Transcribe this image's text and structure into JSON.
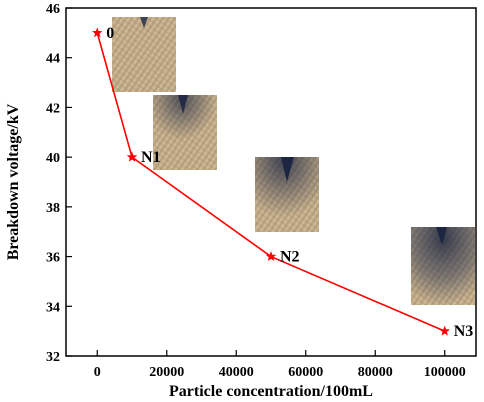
{
  "chart_data": {
    "type": "line",
    "title": "",
    "xlabel": "Particle concentration/100mL",
    "ylabel": "Breakdown voltage/kV",
    "xlim": [
      -9000,
      109000
    ],
    "ylim": [
      32,
      46
    ],
    "xticks": [
      0,
      20000,
      40000,
      60000,
      80000,
      100000
    ],
    "yticks": [
      32,
      34,
      36,
      38,
      40,
      42,
      44,
      46
    ],
    "grid": false,
    "legend": "none",
    "series": [
      {
        "color": "#ff0000",
        "marker": "star",
        "points": [
          {
            "x": 0,
            "y": 45,
            "label": "0"
          },
          {
            "x": 10000,
            "y": 40,
            "label": "N1"
          },
          {
            "x": 50000,
            "y": 36,
            "label": "N2"
          },
          {
            "x": 100000,
            "y": 33,
            "label": "N3"
          }
        ]
      }
    ],
    "insets": [
      {
        "name": "photo-sample-0",
        "attached_to": "0"
      },
      {
        "name": "photo-sample-n1",
        "attached_to": "N1"
      },
      {
        "name": "photo-sample-n2",
        "attached_to": "N2"
      },
      {
        "name": "photo-sample-n3",
        "attached_to": "N3"
      }
    ]
  }
}
